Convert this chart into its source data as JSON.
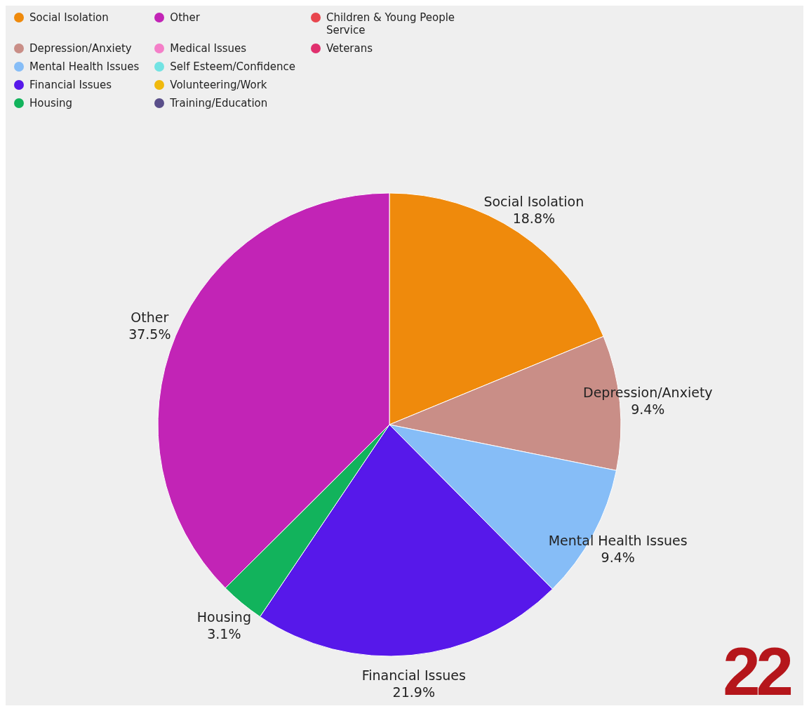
{
  "chart_data": {
    "type": "pie",
    "legend": "top left",
    "categories": [
      "Social Isolation",
      "Depression/Anxiety",
      "Mental Health Issues",
      "Financial Issues",
      "Housing",
      "Other",
      "Medical Issues",
      "Self Esteem/Confidence",
      "Volunteering/Work",
      "Training/Education",
      "Children & Young People Service",
      "Veterans"
    ],
    "values": [
      18.8,
      9.4,
      9.4,
      21.9,
      3.1,
      37.5,
      0,
      0,
      0,
      0,
      0,
      0
    ],
    "value_labels": [
      "18.8%",
      "9.4%",
      "9.4%",
      "21.9%",
      "3.1%",
      "37.5%",
      null,
      null,
      null,
      null,
      null,
      null
    ],
    "colors": [
      "#ef8a0c",
      "#c98e87",
      "#86bdf7",
      "#5718ea",
      "#12b35c",
      "#c224b6",
      "#f47fc8",
      "#72e3e3",
      "#f0b90d",
      "#5a4f8a",
      "#e8464e",
      "#e0306e"
    ],
    "annotations": [
      "22"
    ]
  }
}
